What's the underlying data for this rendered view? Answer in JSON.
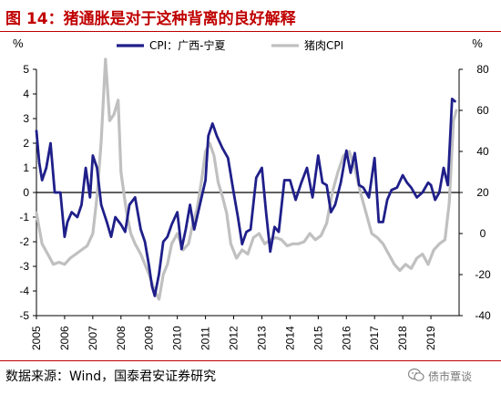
{
  "header": {
    "title": "图 14：猪通胀是对于这种背离的良好解释"
  },
  "footer": {
    "source": "数据来源：Wind，国泰君安证券研究",
    "watermark": "债市覃谈"
  },
  "chart_data": {
    "type": "line",
    "dual_axis": true,
    "y_left_unit": "%",
    "y_right_unit": "%",
    "y_left_range": [
      -5,
      5
    ],
    "y_left_ticks": [
      -5,
      -4,
      -3,
      -2,
      -1,
      0,
      1,
      2,
      3,
      4,
      5
    ],
    "y_right_range": [
      -40,
      80
    ],
    "y_right_ticks": [
      -40,
      -20,
      0,
      20,
      40,
      60,
      80
    ],
    "x_range": [
      2005,
      2020
    ],
    "x_tick_labels": [
      "2005",
      "2006",
      "2007",
      "2008",
      "2009",
      "2010",
      "2011",
      "2012",
      "2013",
      "2014",
      "2015",
      "2016",
      "2017",
      "2018",
      "2019"
    ],
    "legend_position": "top-center",
    "series": [
      {
        "name": "CPI：广西-宁夏",
        "axis": "left",
        "color": "#1f1f8a",
        "x": [
          2005.0,
          2005.1,
          2005.2,
          2005.35,
          2005.5,
          2005.65,
          2005.85,
          2006.0,
          2006.1,
          2006.25,
          2006.45,
          2006.6,
          2006.75,
          2006.9,
          2007.0,
          2007.15,
          2007.3,
          2007.5,
          2007.65,
          2007.8,
          2008.0,
          2008.15,
          2008.3,
          2008.5,
          2008.7,
          2008.85,
          2009.0,
          2009.1,
          2009.2,
          2009.35,
          2009.5,
          2009.65,
          2009.8,
          2010.0,
          2010.15,
          2010.3,
          2010.45,
          2010.6,
          2010.8,
          2011.0,
          2011.1,
          2011.25,
          2011.4,
          2011.6,
          2011.8,
          2012.0,
          2012.15,
          2012.3,
          2012.45,
          2012.6,
          2012.8,
          2013.0,
          2013.15,
          2013.3,
          2013.45,
          2013.6,
          2013.8,
          2014.0,
          2014.2,
          2014.4,
          2014.6,
          2014.8,
          2015.0,
          2015.15,
          2015.3,
          2015.45,
          2015.6,
          2015.8,
          2016.0,
          2016.15,
          2016.3,
          2016.45,
          2016.6,
          2016.8,
          2017.0,
          2017.15,
          2017.3,
          2017.45,
          2017.6,
          2017.8,
          2018.0,
          2018.15,
          2018.3,
          2018.5,
          2018.7,
          2018.9,
          2019.0,
          2019.15,
          2019.3,
          2019.45,
          2019.6,
          2019.75,
          2019.85
        ],
        "values": [
          2.5,
          1.2,
          0.5,
          1.0,
          2.0,
          0.0,
          0.0,
          -1.8,
          -1.2,
          -0.8,
          -1.0,
          -0.5,
          1.0,
          -0.2,
          1.5,
          1.0,
          -0.5,
          -1.2,
          -1.8,
          -1.0,
          -1.3,
          -1.6,
          -0.5,
          -0.2,
          -1.5,
          -2.0,
          -3.0,
          -3.8,
          -4.2,
          -3.3,
          -2.0,
          -1.8,
          -1.3,
          -0.8,
          -2.3,
          -1.5,
          -0.5,
          -1.5,
          -0.5,
          0.5,
          2.3,
          2.8,
          2.3,
          1.8,
          1.4,
          0.0,
          -1.0,
          -2.1,
          -1.6,
          -1.5,
          0.6,
          1.0,
          -0.8,
          -2.4,
          -1.4,
          -1.6,
          0.5,
          0.5,
          -0.3,
          0.4,
          1.0,
          -0.2,
          1.5,
          0.4,
          0.3,
          -0.8,
          -0.5,
          0.4,
          1.7,
          0.8,
          1.6,
          0.3,
          0.2,
          -0.2,
          1.4,
          -1.2,
          -1.2,
          -0.3,
          0.1,
          0.2,
          0.7,
          0.4,
          0.2,
          -0.2,
          0.0,
          0.4,
          0.3,
          -0.3,
          0.0,
          1.0,
          0.3,
          3.8,
          3.7
        ]
      },
      {
        "name": "猪肉CPI",
        "axis": "right",
        "color": "#c0c0c0",
        "x": [
          2005.0,
          2005.2,
          2005.4,
          2005.6,
          2005.8,
          2006.0,
          2006.2,
          2006.4,
          2006.6,
          2006.8,
          2007.0,
          2007.15,
          2007.3,
          2007.45,
          2007.6,
          2007.75,
          2007.9,
          2008.0,
          2008.1,
          2008.2,
          2008.35,
          2008.5,
          2008.7,
          2008.85,
          2009.0,
          2009.2,
          2009.35,
          2009.5,
          2009.65,
          2009.8,
          2010.0,
          2010.2,
          2010.4,
          2010.55,
          2010.7,
          2010.85,
          2011.0,
          2011.15,
          2011.3,
          2011.45,
          2011.6,
          2011.75,
          2011.9,
          2012.1,
          2012.3,
          2012.5,
          2012.7,
          2012.9,
          2013.1,
          2013.3,
          2013.5,
          2013.7,
          2013.9,
          2014.1,
          2014.3,
          2014.5,
          2014.7,
          2014.9,
          2015.1,
          2015.3,
          2015.5,
          2015.7,
          2015.9,
          2016.1,
          2016.3,
          2016.5,
          2016.7,
          2016.9,
          2017.1,
          2017.3,
          2017.5,
          2017.7,
          2017.9,
          2018.1,
          2018.3,
          2018.5,
          2018.7,
          2018.9,
          2019.1,
          2019.3,
          2019.5,
          2019.65,
          2019.8,
          2019.9
        ],
        "values": [
          10,
          -5,
          -10,
          -15,
          -14,
          -15,
          -12,
          -10,
          -8,
          -6,
          0,
          18,
          45,
          85,
          55,
          58,
          65,
          30,
          20,
          10,
          0,
          -5,
          -10,
          -15,
          -20,
          -28,
          -32,
          -20,
          -15,
          -5,
          0,
          -8,
          -5,
          5,
          12,
          25,
          40,
          44,
          38,
          25,
          18,
          10,
          -5,
          -12,
          -8,
          -10,
          -2,
          0,
          -5,
          -3,
          -2,
          -3,
          -6,
          -5,
          -5,
          -4,
          0,
          -3,
          -1,
          5,
          20,
          30,
          38,
          40,
          32,
          20,
          10,
          0,
          -2,
          -5,
          -10,
          -15,
          -18,
          -15,
          -17,
          -12,
          -10,
          -15,
          -8,
          -5,
          -3,
          15,
          55,
          60
        ]
      }
    ]
  }
}
